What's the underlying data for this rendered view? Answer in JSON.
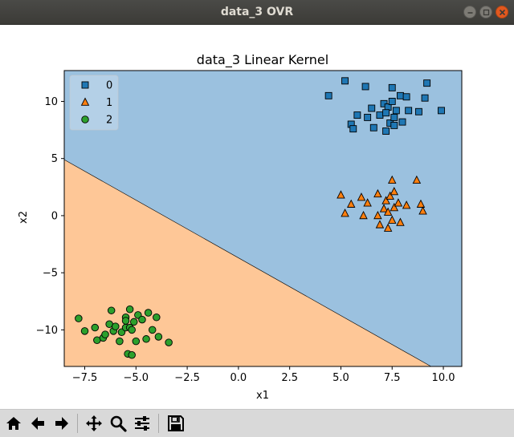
{
  "window": {
    "title": "data_3 OVR"
  },
  "chart_data": {
    "type": "scatter",
    "title": "data_3 Linear Kernel",
    "xlabel": "x1",
    "ylabel": "x2",
    "xlim": [
      -8.5,
      10.9
    ],
    "ylim": [
      -13.2,
      12.7
    ],
    "xticks": [
      -7.5,
      -5.0,
      -2.5,
      0.0,
      2.5,
      5.0,
      7.5,
      10.0
    ],
    "xtick_labels": [
      "−7.5",
      "−5.0",
      "−2.5",
      "0.0",
      "2.5",
      "5.0",
      "7.5",
      "10.0"
    ],
    "yticks": [
      10,
      5,
      0,
      -5,
      -10
    ],
    "ytick_labels": [
      "10",
      "5",
      "0",
      "−5",
      "−10"
    ],
    "grid": false,
    "legend_position": "top-left",
    "decision_regions": [
      {
        "class": "0",
        "color": "#9bc1df",
        "note": "above boundary"
      },
      {
        "class": "2",
        "color": "#fec797",
        "note": "below boundary"
      }
    ],
    "decision_boundary": {
      "points": [
        [
          -8.5,
          4.9
        ],
        [
          9.4,
          -13.2
        ]
      ],
      "color": "#000000"
    },
    "series": [
      {
        "name": "0",
        "marker": "square",
        "color": "#1f77b4",
        "points": [
          [
            4.4,
            10.5
          ],
          [
            5.2,
            11.8
          ],
          [
            5.5,
            8.0
          ],
          [
            5.6,
            7.6
          ],
          [
            5.8,
            8.8
          ],
          [
            6.2,
            11.3
          ],
          [
            6.3,
            8.6
          ],
          [
            6.5,
            9.4
          ],
          [
            6.6,
            7.7
          ],
          [
            6.9,
            8.8
          ],
          [
            7.1,
            9.8
          ],
          [
            7.2,
            7.4
          ],
          [
            7.3,
            9.5
          ],
          [
            7.4,
            8.1
          ],
          [
            7.5,
            11.2
          ],
          [
            7.5,
            10.0
          ],
          [
            7.6,
            8.6
          ],
          [
            7.7,
            9.2
          ],
          [
            7.9,
            10.5
          ],
          [
            8.0,
            8.2
          ],
          [
            8.2,
            10.4
          ],
          [
            8.3,
            9.2
          ],
          [
            8.8,
            9.1
          ],
          [
            9.1,
            10.3
          ],
          [
            9.2,
            11.6
          ],
          [
            9.9,
            9.2
          ],
          [
            7.6,
            7.9
          ],
          [
            7.2,
            9.0
          ]
        ]
      },
      {
        "name": "1",
        "marker": "triangle",
        "color": "#ff7f0e",
        "points": [
          [
            5.0,
            1.8
          ],
          [
            5.2,
            0.2
          ],
          [
            5.5,
            1.0
          ],
          [
            6.0,
            1.6
          ],
          [
            6.1,
            0.0
          ],
          [
            6.3,
            1.1
          ],
          [
            6.8,
            1.9
          ],
          [
            6.8,
            0.0
          ],
          [
            6.9,
            -0.8
          ],
          [
            7.1,
            0.6
          ],
          [
            7.2,
            1.3
          ],
          [
            7.3,
            -1.1
          ],
          [
            7.3,
            0.3
          ],
          [
            7.4,
            1.7
          ],
          [
            7.5,
            3.1
          ],
          [
            7.5,
            -0.4
          ],
          [
            7.6,
            2.1
          ],
          [
            7.6,
            0.7
          ],
          [
            7.8,
            1.1
          ],
          [
            7.9,
            -0.6
          ],
          [
            8.2,
            0.9
          ],
          [
            8.7,
            3.1
          ],
          [
            8.9,
            1.0
          ],
          [
            9.0,
            0.4
          ]
        ]
      },
      {
        "name": "2",
        "marker": "circle",
        "color": "#2ca02c",
        "points": [
          [
            -7.8,
            -9.0
          ],
          [
            -7.5,
            -10.1
          ],
          [
            -7.0,
            -9.8
          ],
          [
            -6.9,
            -10.9
          ],
          [
            -6.6,
            -10.7
          ],
          [
            -6.5,
            -10.4
          ],
          [
            -6.3,
            -9.5
          ],
          [
            -6.2,
            -8.3
          ],
          [
            -6.1,
            -10.1
          ],
          [
            -6.0,
            -9.7
          ],
          [
            -5.8,
            -11.0
          ],
          [
            -5.7,
            -10.2
          ],
          [
            -5.5,
            -9.8
          ],
          [
            -5.5,
            -8.9
          ],
          [
            -5.4,
            -12.1
          ],
          [
            -5.3,
            -8.2
          ],
          [
            -5.3,
            -9.8
          ],
          [
            -5.2,
            -12.2
          ],
          [
            -5.2,
            -10.0
          ],
          [
            -5.1,
            -9.3
          ],
          [
            -5.0,
            -11.0
          ],
          [
            -4.9,
            -8.7
          ],
          [
            -4.7,
            -9.1
          ],
          [
            -4.5,
            -10.8
          ],
          [
            -4.4,
            -8.5
          ],
          [
            -4.2,
            -10.0
          ],
          [
            -4.0,
            -8.9
          ],
          [
            -3.9,
            -10.6
          ],
          [
            -3.4,
            -11.1
          ],
          [
            -5.5,
            -9.2
          ]
        ]
      }
    ]
  },
  "toolbar": {
    "buttons": [
      {
        "name": "home",
        "icon": "home-icon"
      },
      {
        "name": "back",
        "icon": "arrow-left-icon"
      },
      {
        "name": "forward",
        "icon": "arrow-right-icon"
      },
      {
        "name": "pan",
        "icon": "move-icon"
      },
      {
        "name": "zoom",
        "icon": "magnifier-icon"
      },
      {
        "name": "configure-subplots",
        "icon": "sliders-icon"
      },
      {
        "name": "save",
        "icon": "floppy-disk-icon"
      }
    ]
  }
}
